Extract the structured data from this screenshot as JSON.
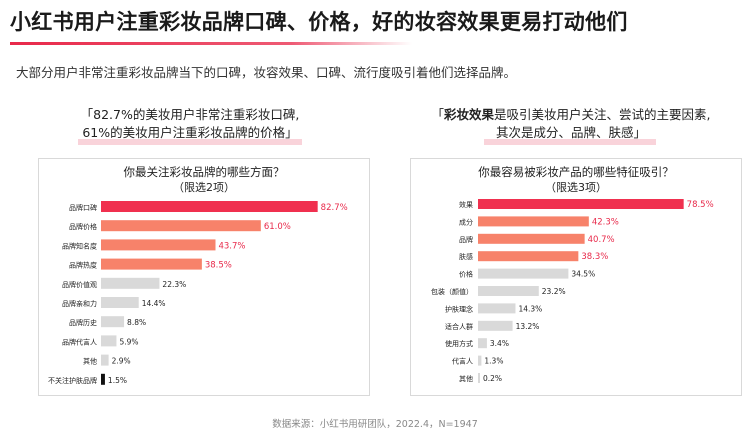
{
  "title": "小红书用户注重彩妆品牌口碑、价格，好的妆容效果更易打动他们",
  "subtitle": "大部分用户非常注重彩妆品牌当下的口碑，妆容效果、口碑、流行度吸引着他们选择品牌。",
  "quote_left": {
    "line1": "「82.7%的美妆用户非常注重彩妆口碑,",
    "line2": "61%的美妆用户注重彩妆品牌的价格」"
  },
  "quote_right": {
    "open": "「",
    "highlight": "彩妆效果",
    "line1_rest": "是吸引美妆用户关注、尝试的主要因素,",
    "line2": "其次是成分、品牌、肤感」"
  },
  "source": "数据来源：小红书用研团队，2022.4，N=1947",
  "colors": {
    "accent": "#e8294a",
    "top_bar": "#f0304f",
    "high_bar": "#f7826a",
    "low_bar": "#d9d9d9",
    "black_bar": "#111111"
  },
  "chart_data": [
    {
      "type": "bar",
      "orientation": "horizontal",
      "title": "你最关注彩妆品牌的哪些方面？",
      "subtitle": "（限选2项）",
      "categories": [
        "品牌口碑",
        "品牌价格",
        "品牌知名度",
        "品牌热度",
        "品牌价值观",
        "品牌亲和力",
        "品牌历史",
        "品牌代言人",
        "其他",
        "不关注护肤品牌"
      ],
      "values": [
        82.7,
        61.0,
        43.7,
        38.5,
        22.3,
        14.4,
        8.8,
        5.9,
        2.9,
        1.5
      ],
      "labels": [
        "82.7%",
        "61.0%",
        "43.7%",
        "38.5%",
        "22.3%",
        "14.4%",
        "8.8%",
        "5.9%",
        "2.9%",
        "1.5%"
      ],
      "xlim": [
        0,
        100
      ]
    },
    {
      "type": "bar",
      "orientation": "horizontal",
      "title": "你最容易被彩妆产品的哪些特征吸引？",
      "subtitle": "（限选3项）",
      "categories": [
        "效果",
        "成分",
        "品牌",
        "肤感",
        "价格",
        "包装（颜值）",
        "护肤理念",
        "适合人群",
        "使用方式",
        "代言人",
        "其他"
      ],
      "values": [
        78.5,
        42.3,
        40.7,
        38.3,
        34.5,
        23.2,
        14.3,
        13.2,
        3.4,
        1.3,
        0.2
      ],
      "labels": [
        "78.5%",
        "42.3%",
        "40.7%",
        "38.3%",
        "34.5%",
        "23.2%",
        "14.3%",
        "13.2%",
        "3.4%",
        "1.3%",
        "0.2%"
      ],
      "xlim": [
        0,
        100
      ]
    }
  ]
}
